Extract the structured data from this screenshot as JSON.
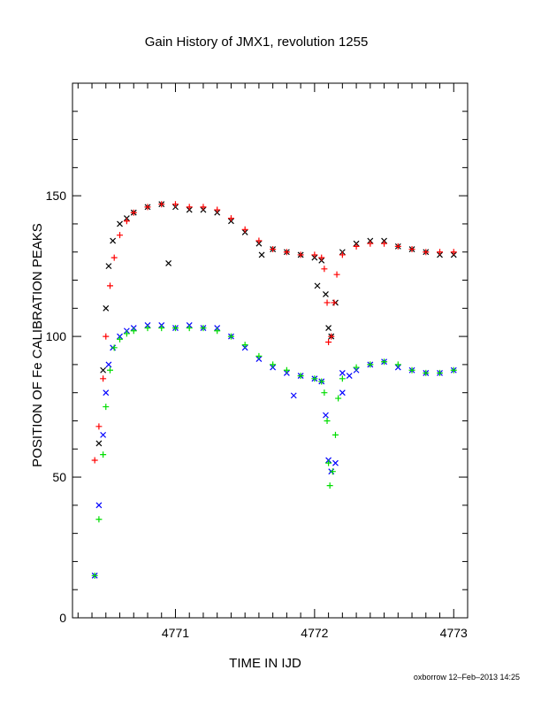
{
  "chart_data": {
    "type": "scatter",
    "title": "Gain History of JMX1, revolution 1255",
    "xlabel": "TIME IN IJD",
    "ylabel": "POSITION OF Fe CALIBRATION PEAKS",
    "xlim": [
      4770.26,
      4773.1
    ],
    "ylim": [
      0,
      190
    ],
    "x_ticks": [
      4771,
      4772,
      4773
    ],
    "x_tick_labels": [
      "4771",
      "4772",
      "4773"
    ],
    "y_ticks": [
      0,
      50,
      100,
      150
    ],
    "y_tick_labels": [
      "0",
      "50",
      "100",
      "150"
    ],
    "footer": "oxborrow 12–Feb–2013 14:25",
    "grid": false,
    "legend": "none",
    "series": [
      {
        "marker": "x",
        "color": "#000000",
        "points": [
          [
            4770.45,
            62
          ],
          [
            4770.48,
            88
          ],
          [
            4770.5,
            110
          ],
          [
            4770.52,
            125
          ],
          [
            4770.55,
            134
          ],
          [
            4770.6,
            140
          ],
          [
            4770.65,
            142
          ],
          [
            4770.7,
            144
          ],
          [
            4770.8,
            146
          ],
          [
            4770.9,
            147
          ],
          [
            4771.0,
            146
          ],
          [
            4771.1,
            145
          ],
          [
            4771.2,
            145
          ],
          [
            4771.3,
            144
          ],
          [
            4771.4,
            141
          ],
          [
            4771.5,
            137
          ],
          [
            4771.6,
            133
          ],
          [
            4771.7,
            131
          ],
          [
            4771.8,
            130
          ],
          [
            4771.9,
            129
          ],
          [
            4772.0,
            128
          ],
          [
            4772.05,
            127
          ],
          [
            4772.08,
            115
          ],
          [
            4772.1,
            103
          ],
          [
            4772.12,
            100
          ],
          [
            4772.15,
            112
          ],
          [
            4772.2,
            130
          ],
          [
            4772.3,
            133
          ],
          [
            4772.4,
            134
          ],
          [
            4772.5,
            134
          ],
          [
            4772.6,
            132
          ],
          [
            4772.7,
            131
          ],
          [
            4772.8,
            130
          ],
          [
            4772.9,
            129
          ],
          [
            4773.0,
            129
          ],
          [
            4770.95,
            126
          ],
          [
            4771.62,
            129
          ],
          [
            4772.02,
            118
          ]
        ]
      },
      {
        "marker": "+",
        "color": "#ff0000",
        "points": [
          [
            4770.42,
            56
          ],
          [
            4770.45,
            68
          ],
          [
            4770.48,
            85
          ],
          [
            4770.5,
            100
          ],
          [
            4770.53,
            118
          ],
          [
            4770.56,
            128
          ],
          [
            4770.6,
            136
          ],
          [
            4770.65,
            141
          ],
          [
            4770.7,
            144
          ],
          [
            4770.8,
            146
          ],
          [
            4770.9,
            147
          ],
          [
            4771.0,
            147
          ],
          [
            4771.1,
            146
          ],
          [
            4771.2,
            146
          ],
          [
            4771.3,
            145
          ],
          [
            4771.4,
            142
          ],
          [
            4771.5,
            138
          ],
          [
            4771.6,
            134
          ],
          [
            4771.7,
            131
          ],
          [
            4771.8,
            130
          ],
          [
            4771.9,
            129
          ],
          [
            4772.0,
            129
          ],
          [
            4772.05,
            128
          ],
          [
            4772.07,
            124
          ],
          [
            4772.09,
            112
          ],
          [
            4772.1,
            98
          ],
          [
            4772.12,
            100
          ],
          [
            4772.14,
            112
          ],
          [
            4772.16,
            122
          ],
          [
            4772.2,
            129
          ],
          [
            4772.3,
            132
          ],
          [
            4772.4,
            133
          ],
          [
            4772.5,
            133
          ],
          [
            4772.6,
            132
          ],
          [
            4772.7,
            131
          ],
          [
            4772.8,
            130
          ],
          [
            4772.9,
            130
          ],
          [
            4773.0,
            130
          ]
        ]
      },
      {
        "marker": "x",
        "color": "#0000ff",
        "points": [
          [
            4770.42,
            15
          ],
          [
            4770.45,
            40
          ],
          [
            4770.48,
            65
          ],
          [
            4770.5,
            80
          ],
          [
            4770.52,
            90
          ],
          [
            4770.55,
            96
          ],
          [
            4770.6,
            100
          ],
          [
            4770.65,
            102
          ],
          [
            4770.7,
            103
          ],
          [
            4770.8,
            104
          ],
          [
            4770.9,
            104
          ],
          [
            4771.0,
            103
          ],
          [
            4771.1,
            104
          ],
          [
            4771.2,
            103
          ],
          [
            4771.3,
            103
          ],
          [
            4771.4,
            100
          ],
          [
            4771.5,
            96
          ],
          [
            4771.6,
            92
          ],
          [
            4771.7,
            89
          ],
          [
            4771.8,
            87
          ],
          [
            4771.9,
            86
          ],
          [
            4772.0,
            85
          ],
          [
            4772.05,
            84
          ],
          [
            4772.08,
            72
          ],
          [
            4772.1,
            56
          ],
          [
            4772.12,
            52
          ],
          [
            4772.15,
            55
          ],
          [
            4772.2,
            80
          ],
          [
            4772.25,
            86
          ],
          [
            4772.3,
            88
          ],
          [
            4772.4,
            90
          ],
          [
            4772.5,
            91
          ],
          [
            4772.6,
            89
          ],
          [
            4772.7,
            88
          ],
          [
            4772.8,
            87
          ],
          [
            4772.9,
            87
          ],
          [
            4773.0,
            88
          ],
          [
            4771.85,
            79
          ],
          [
            4772.2,
            87
          ]
        ]
      },
      {
        "marker": "+",
        "color": "#00dd00",
        "points": [
          [
            4770.42,
            15
          ],
          [
            4770.45,
            35
          ],
          [
            4770.48,
            58
          ],
          [
            4770.5,
            75
          ],
          [
            4770.53,
            88
          ],
          [
            4770.56,
            96
          ],
          [
            4770.6,
            99
          ],
          [
            4770.65,
            101
          ],
          [
            4770.7,
            102
          ],
          [
            4770.8,
            103
          ],
          [
            4770.9,
            103
          ],
          [
            4771.0,
            103
          ],
          [
            4771.1,
            103
          ],
          [
            4771.2,
            103
          ],
          [
            4771.3,
            102
          ],
          [
            4771.4,
            100
          ],
          [
            4771.5,
            97
          ],
          [
            4771.6,
            93
          ],
          [
            4771.7,
            90
          ],
          [
            4771.8,
            88
          ],
          [
            4771.9,
            86
          ],
          [
            4772.0,
            85
          ],
          [
            4772.05,
            84
          ],
          [
            4772.07,
            80
          ],
          [
            4772.09,
            70
          ],
          [
            4772.1,
            55
          ],
          [
            4772.11,
            47
          ],
          [
            4772.13,
            52
          ],
          [
            4772.15,
            65
          ],
          [
            4772.17,
            78
          ],
          [
            4772.2,
            85
          ],
          [
            4772.3,
            89
          ],
          [
            4772.4,
            90
          ],
          [
            4772.5,
            91
          ],
          [
            4772.6,
            90
          ],
          [
            4772.7,
            88
          ],
          [
            4772.8,
            87
          ],
          [
            4772.9,
            87
          ],
          [
            4773.0,
            88
          ]
        ]
      }
    ]
  }
}
